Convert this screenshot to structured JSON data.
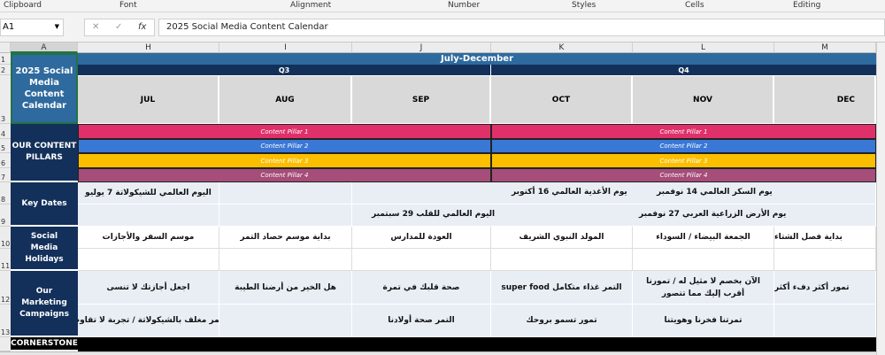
{
  "ribbon": {
    "groups": [
      "Clipboard",
      "Font",
      "Alignment",
      "Number",
      "Styles",
      "Cells",
      "Editing"
    ]
  },
  "formula_bar": {
    "name_box": "A1",
    "cancel": "✕",
    "enter": "✓",
    "fx": "fx",
    "value": "2025 Social Media Content Calendar"
  },
  "columns": [
    "A",
    "H",
    "I",
    "J",
    "K",
    "L",
    "M"
  ],
  "rows": [
    "1",
    "2",
    "3",
    "4",
    "5",
    "6",
    "7",
    "8",
    "9",
    "10",
    "11",
    "12",
    "13"
  ],
  "title_cell": "2025 Social Media Content Calendar",
  "period": "July-December",
  "quarters": [
    "Q3",
    "Q4"
  ],
  "months": [
    "JUL",
    "AUG",
    "SEP",
    "OCT",
    "NOV",
    "DEC"
  ],
  "labels": {
    "pillars": "OUR CONTENT PILLARS",
    "key_dates": "Key Dates",
    "holidays": "Social Media Holidays",
    "campaigns": "Our Marketing Campaigns",
    "cornerstone": "CORNERSTONE"
  },
  "pillars": [
    {
      "name": "Content Pillar 1",
      "color": "#e0306a"
    },
    {
      "name": "Content Pillar 2",
      "color": "#3a78d6"
    },
    {
      "name": "Content Pillar 3",
      "color": "#fbbf00"
    },
    {
      "name": "Content Pillar 4",
      "color": "#a64d79"
    }
  ],
  "key_dates": {
    "row8": [
      "اليوم العالمي للشيكولاتة 7 يوليو",
      "يوم الأغذية العالمي 16 أكتوبر",
      "يوم السكر العالمي 14 نوفمبر"
    ],
    "row9": [
      "اليوم العالمي للقلب 29 سبتمبر",
      "يوم الأرض الزراعية العربي 27 نوفمبر"
    ]
  },
  "holidays": [
    "موسم السفر والأجازات",
    "بداية موسم حصاد التمر",
    "العودة للمدارس",
    "المولد النبوي الشريف",
    "الجمعة البيضاء / السوداء",
    "بداية فصل الشتاء"
  ],
  "campaigns_row12": [
    "اجعل أجازتك لا تنسى",
    "هل الخير من أرضنا الطيبة",
    "صحة قلبك في تمرة",
    "التمر غذاء متكامل super food",
    "الآن بخصم لا مثيل له / تمورنا أقرب إليك مما تتصور",
    "تمور أكثر دفء أكثر"
  ],
  "campaigns_row13": [
    "تمر مغلف بالشيكولاتة / تجربة لا تقاوم",
    "",
    "التمر صحة أولادنا",
    "تمور تسمو بروحك",
    "تمرتنا فخرنا وهويتنا",
    ""
  ],
  "colors": {
    "navy": "#13305a",
    "blue": "#2e6a9e",
    "month_bg": "#d9d9d9",
    "light_row": "#e9eef5"
  }
}
